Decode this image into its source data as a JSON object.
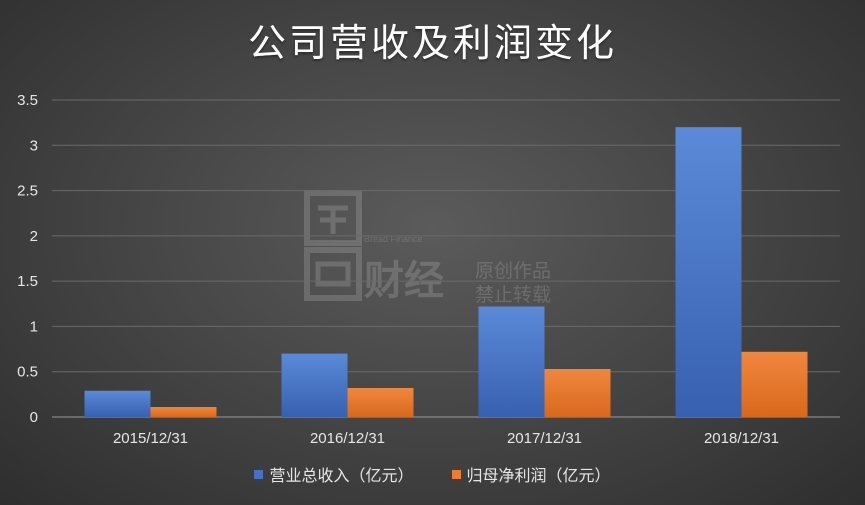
{
  "title": "公司营收及利润变化",
  "watermark": {
    "en": "Bread Finance",
    "brand": "财经",
    "line1": "原创作品",
    "line2": "禁止转载"
  },
  "chart_data": {
    "type": "bar",
    "title": "公司营收及利润变化",
    "categories": [
      "2015/12/31",
      "2016/12/31",
      "2017/12/31",
      "2018/12/31"
    ],
    "series": [
      {
        "name": "营业总收入（亿元）",
        "values": [
          0.29,
          0.7,
          1.22,
          3.2
        ],
        "color": "#4472c4"
      },
      {
        "name": "归母净利润（亿元）",
        "values": [
          0.11,
          0.32,
          0.53,
          0.72
        ],
        "color": "#ed7d31"
      }
    ],
    "yticks": [
      "0",
      "0.5",
      "1",
      "1.5",
      "2",
      "2.5",
      "3",
      "3.5"
    ],
    "ylim": [
      0,
      3.5
    ],
    "grid": true,
    "legend_position": "bottom"
  }
}
